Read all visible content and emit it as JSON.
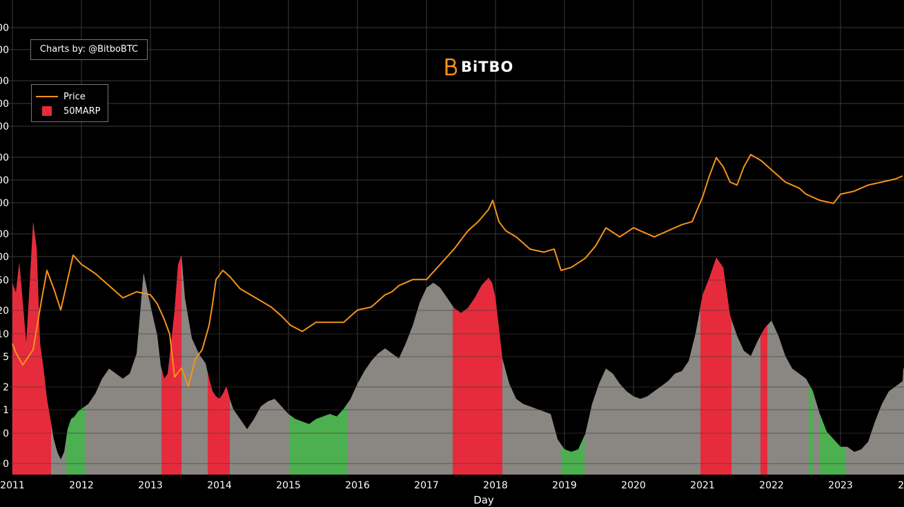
{
  "chart_data": {
    "type": "area",
    "xlabel": "Day",
    "x_ticks": [
      "2011",
      "2012",
      "2013",
      "2014",
      "2015",
      "2016",
      "2017",
      "2018",
      "2019",
      "2020",
      "2021",
      "2022",
      "2023",
      "2"
    ],
    "price_axis_ticks": [
      "00",
      "00",
      "00",
      "00",
      "00",
      "00",
      "00",
      "00",
      "00",
      "00"
    ],
    "oscillator_axis_ticks": [
      "50",
      "20",
      "10",
      "5",
      "2",
      "1",
      "0",
      "0"
    ],
    "series": [
      {
        "name": "Price",
        "color": "#f7931a",
        "x": [
          2011.0,
          2011.05,
          2011.15,
          2011.3,
          2011.42,
          2011.5,
          2011.6,
          2011.7,
          2011.8,
          2011.88,
          2012.0,
          2012.2,
          2012.4,
          2012.6,
          2012.8,
          2013.0,
          2013.1,
          2013.2,
          2013.28,
          2013.35,
          2013.45,
          2013.55,
          2013.65,
          2013.75,
          2013.85,
          2013.9,
          2013.95,
          2014.05,
          2014.15,
          2014.3,
          2014.45,
          2014.6,
          2014.75,
          2014.9,
          2015.03,
          2015.2,
          2015.4,
          2015.6,
          2015.8,
          2016.0,
          2016.2,
          2016.4,
          2016.5,
          2016.6,
          2016.8,
          2017.0,
          2017.2,
          2017.4,
          2017.6,
          2017.75,
          2017.9,
          2017.96,
          2018.05,
          2018.15,
          2018.3,
          2018.5,
          2018.7,
          2018.85,
          2018.95,
          2019.1,
          2019.3,
          2019.45,
          2019.6,
          2019.8,
          2020.0,
          2020.2,
          2020.3,
          2020.5,
          2020.7,
          2020.85,
          2021.0,
          2021.1,
          2021.2,
          2021.3,
          2021.4,
          2021.5,
          2021.6,
          2021.7,
          2021.85,
          2022.0,
          2022.2,
          2022.4,
          2022.5,
          2022.7,
          2022.9,
          2023.0,
          2023.2,
          2023.4,
          2023.6,
          2023.8,
          2023.9
        ],
        "price_pos": [
          0.14,
          0.11,
          0.07,
          0.12,
          0.28,
          0.38,
          0.32,
          0.25,
          0.35,
          0.43,
          0.4,
          0.37,
          0.33,
          0.29,
          0.31,
          0.3,
          0.27,
          0.22,
          0.17,
          0.03,
          0.06,
          0.0,
          0.09,
          0.12,
          0.2,
          0.27,
          0.35,
          0.38,
          0.36,
          0.32,
          0.3,
          0.28,
          0.26,
          0.23,
          0.2,
          0.18,
          0.21,
          0.21,
          0.21,
          0.25,
          0.26,
          0.3,
          0.31,
          0.33,
          0.35,
          0.35,
          0.4,
          0.45,
          0.51,
          0.54,
          0.58,
          0.61,
          0.54,
          0.51,
          0.49,
          0.45,
          0.44,
          0.45,
          0.38,
          0.39,
          0.42,
          0.46,
          0.52,
          0.49,
          0.52,
          0.5,
          0.49,
          0.51,
          0.53,
          0.54,
          0.62,
          0.69,
          0.75,
          0.72,
          0.67,
          0.66,
          0.72,
          0.76,
          0.74,
          0.71,
          0.67,
          0.65,
          0.63,
          0.61,
          0.6,
          0.63,
          0.64,
          0.66,
          0.67,
          0.68,
          0.69
        ]
      },
      {
        "name": "50MARP",
        "zone_colors": {
          "high": "#e62b3c",
          "normal": "#8a8682",
          "low": "#4caf50"
        },
        "x": [
          2011.0,
          2011.05,
          2011.1,
          2011.15,
          2011.2,
          2011.25,
          2011.3,
          2011.35,
          2011.4,
          2011.45,
          2011.5,
          2011.55,
          2011.6,
          2011.65,
          2011.7,
          2011.75,
          2011.8,
          2011.85,
          2011.9,
          2011.95,
          2012.0,
          2012.1,
          2012.2,
          2012.3,
          2012.4,
          2012.5,
          2012.6,
          2012.7,
          2012.8,
          2012.9,
          2013.0,
          2013.1,
          2013.15,
          2013.2,
          2013.25,
          2013.3,
          2013.35,
          2013.4,
          2013.45,
          2013.5,
          2013.6,
          2013.7,
          2013.8,
          2013.85,
          2013.9,
          2013.95,
          2014.0,
          2014.05,
          2014.1,
          2014.15,
          2014.2,
          2014.3,
          2014.4,
          2014.5,
          2014.6,
          2014.7,
          2014.8,
          2014.9,
          2015.0,
          2015.1,
          2015.2,
          2015.3,
          2015.4,
          2015.5,
          2015.6,
          2015.7,
          2015.8,
          2015.9,
          2016.0,
          2016.1,
          2016.2,
          2016.3,
          2016.4,
          2016.5,
          2016.6,
          2016.7,
          2016.8,
          2016.9,
          2017.0,
          2017.1,
          2017.2,
          2017.3,
          2017.4,
          2017.5,
          2017.6,
          2017.7,
          2017.8,
          2017.9,
          2017.95,
          2018.0,
          2018.05,
          2018.1,
          2018.2,
          2018.3,
          2018.4,
          2018.5,
          2018.6,
          2018.7,
          2018.8,
          2018.9,
          2019.0,
          2019.1,
          2019.2,
          2019.3,
          2019.4,
          2019.5,
          2019.6,
          2019.7,
          2019.8,
          2019.9,
          2020.0,
          2020.1,
          2020.2,
          2020.3,
          2020.4,
          2020.5,
          2020.6,
          2020.7,
          2020.8,
          2020.9,
          2021.0,
          2021.1,
          2021.2,
          2021.3,
          2021.4,
          2021.5,
          2021.6,
          2021.7,
          2021.8,
          2021.9,
          2022.0,
          2022.1,
          2022.2,
          2022.3,
          2022.4,
          2022.5,
          2022.6,
          2022.7,
          2022.8,
          2022.9,
          2023.0,
          2023.1,
          2023.2,
          2023.3,
          2023.4,
          2023.5,
          2023.6,
          2023.7,
          2023.8,
          2023.9
        ],
        "osc": [
          0.76,
          0.72,
          0.84,
          0.68,
          0.52,
          0.75,
          1.0,
          0.9,
          0.52,
          0.42,
          0.3,
          0.22,
          0.14,
          0.09,
          0.06,
          0.09,
          0.18,
          0.22,
          0.23,
          0.25,
          0.26,
          0.28,
          0.32,
          0.38,
          0.42,
          0.4,
          0.38,
          0.4,
          0.48,
          0.8,
          0.67,
          0.55,
          0.43,
          0.38,
          0.4,
          0.52,
          0.65,
          0.83,
          0.87,
          0.7,
          0.54,
          0.48,
          0.44,
          0.38,
          0.33,
          0.31,
          0.3,
          0.32,
          0.35,
          0.3,
          0.26,
          0.22,
          0.18,
          0.22,
          0.27,
          0.29,
          0.3,
          0.27,
          0.24,
          0.22,
          0.21,
          0.2,
          0.22,
          0.23,
          0.24,
          0.23,
          0.26,
          0.3,
          0.36,
          0.41,
          0.45,
          0.48,
          0.5,
          0.48,
          0.46,
          0.52,
          0.59,
          0.68,
          0.74,
          0.76,
          0.74,
          0.7,
          0.66,
          0.64,
          0.66,
          0.7,
          0.75,
          0.78,
          0.76,
          0.7,
          0.58,
          0.46,
          0.36,
          0.3,
          0.28,
          0.27,
          0.26,
          0.25,
          0.24,
          0.14,
          0.1,
          0.09,
          0.1,
          0.16,
          0.28,
          0.36,
          0.42,
          0.4,
          0.36,
          0.33,
          0.31,
          0.3,
          0.31,
          0.33,
          0.35,
          0.37,
          0.4,
          0.41,
          0.45,
          0.56,
          0.71,
          0.78,
          0.86,
          0.82,
          0.63,
          0.55,
          0.49,
          0.47,
          0.53,
          0.58,
          0.61,
          0.55,
          0.47,
          0.42,
          0.4,
          0.38,
          0.33,
          0.24,
          0.17,
          0.14,
          0.11,
          0.11,
          0.09,
          0.1,
          0.13,
          0.21,
          0.28,
          0.33,
          0.35,
          0.37,
          0.4,
          0.42
        ],
        "zones": [
          {
            "from": 2011.0,
            "to": 2011.56,
            "state": "high"
          },
          {
            "from": 2011.78,
            "to": 2012.05,
            "state": "low"
          },
          {
            "from": 2013.16,
            "to": 2013.45,
            "state": "high"
          },
          {
            "from": 2013.83,
            "to": 2014.15,
            "state": "high"
          },
          {
            "from": 2015.02,
            "to": 2015.86,
            "state": "low"
          },
          {
            "from": 2017.38,
            "to": 2018.1,
            "state": "high"
          },
          {
            "from": 2018.95,
            "to": 2019.29,
            "state": "low"
          },
          {
            "from": 2020.97,
            "to": 2021.42,
            "state": "high"
          },
          {
            "from": 2021.84,
            "to": 2021.94,
            "state": "high"
          },
          {
            "from": 2022.54,
            "to": 2022.6,
            "state": "low"
          },
          {
            "from": 2022.7,
            "to": 2023.08,
            "state": "low"
          }
        ]
      }
    ],
    "xlim": [
      2011.0,
      2023.92
    ],
    "grid": true,
    "legend_position": "top-left"
  },
  "credit_label": "Charts by: @BitboBTC",
  "logo_text": "BiTBO",
  "legend": [
    {
      "label": "Price",
      "color": "#f7931a",
      "kind": "line"
    },
    {
      "label": "50MARP",
      "color": "#e62b3c",
      "kind": "swatch"
    }
  ],
  "colors": {
    "background": "#000000",
    "grid": "#3a3a3a",
    "axis_text": "#ffffff"
  }
}
